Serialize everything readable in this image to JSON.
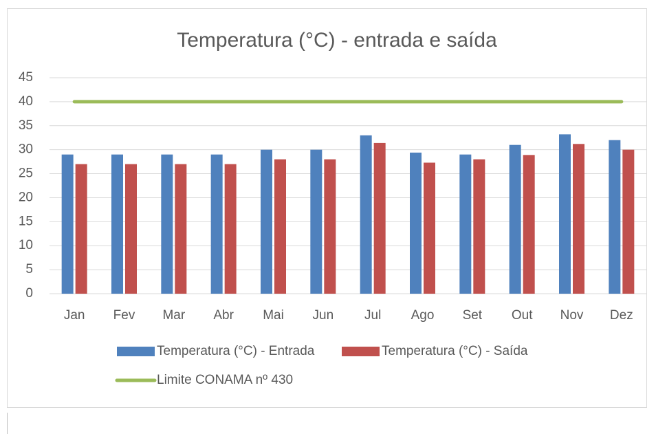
{
  "chart_data": {
    "type": "bar",
    "title": "Temperatura (°C) - entrada e saída",
    "categories": [
      "Jan",
      "Fev",
      "Mar",
      "Abr",
      "Mai",
      "Jun",
      "Jul",
      "Ago",
      "Set",
      "Out",
      "Nov",
      "Dez"
    ],
    "series": [
      {
        "name": "Temperatura (°C) - Entrada",
        "type": "bar",
        "color": "#4f81bd",
        "values": [
          29,
          29,
          29,
          29,
          30,
          30,
          33,
          29.4,
          29,
          31,
          33.2,
          32
        ]
      },
      {
        "name": "Temperatura (°C) - Saída",
        "type": "bar",
        "color": "#c0504d",
        "values": [
          27,
          27,
          27,
          27,
          28,
          28,
          31.4,
          27.3,
          28,
          28.9,
          31.2,
          30
        ]
      },
      {
        "name": "Limite CONAMA nº 430",
        "type": "line",
        "color": "#9bbb59",
        "values": [
          40,
          40,
          40,
          40,
          40,
          40,
          40,
          40,
          40,
          40,
          40,
          40
        ]
      }
    ],
    "ylim": [
      0,
      45
    ],
    "yticks": [
      0,
      5,
      10,
      15,
      20,
      25,
      30,
      35,
      40,
      45
    ],
    "grid": true,
    "legend": "bottom"
  }
}
